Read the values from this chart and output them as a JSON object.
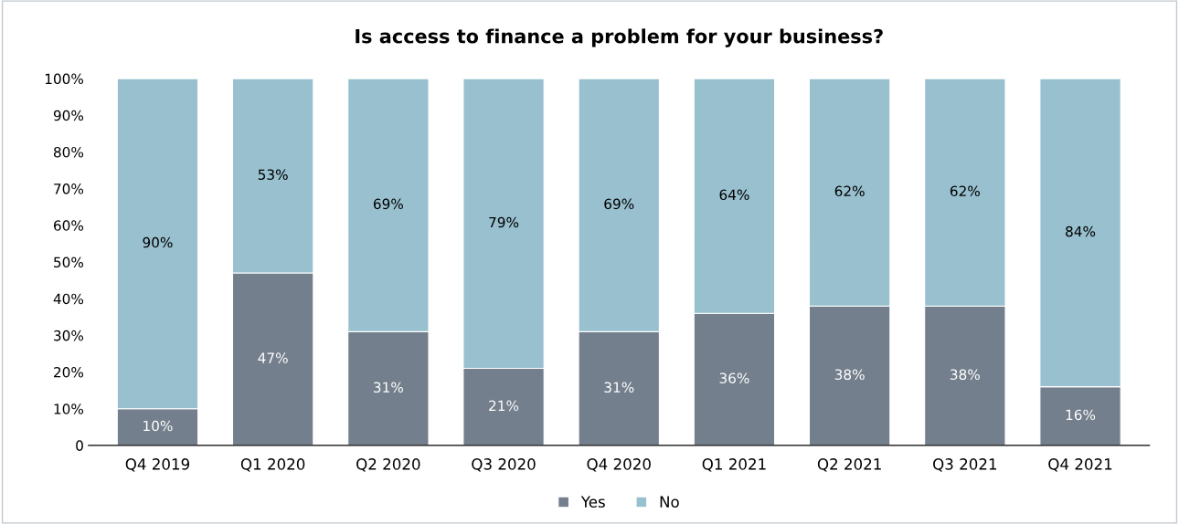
{
  "chart_data": {
    "type": "bar",
    "title": "Is access to finance a problem for your business?",
    "categories": [
      "Q4 2019",
      "Q1 2020",
      "Q2 2020",
      "Q3 2020",
      "Q4 2020",
      "Q1 2021",
      "Q2 2021",
      "Q3 2021",
      "Q4 2021"
    ],
    "series": [
      {
        "name": "Yes",
        "color": "#737f8c",
        "values": [
          10,
          47,
          31,
          21,
          31,
          36,
          38,
          38,
          16
        ],
        "value_labels": [
          "10%",
          "47%",
          "31%",
          "21%",
          "31%",
          "36%",
          "38%",
          "38%",
          "16%"
        ]
      },
      {
        "name": "No",
        "color": "#98c0cf",
        "values": [
          90,
          53,
          69,
          79,
          69,
          64,
          62,
          62,
          84
        ],
        "value_labels": [
          "90%",
          "53%",
          "69%",
          "79%",
          "69%",
          "64%",
          "62%",
          "62%",
          "84%"
        ]
      }
    ],
    "stacked": true,
    "ylim": [
      0,
      100
    ],
    "yticks": [
      0,
      {
        "value": 10,
        "label": "10%"
      },
      {
        "value": 20,
        "label": "20%"
      },
      {
        "value": 30,
        "label": "30%"
      },
      {
        "value": 40,
        "label": "40%"
      },
      {
        "value": 50,
        "label": "50%"
      },
      {
        "value": 60,
        "label": "60%"
      },
      {
        "value": 70,
        "label": "70%"
      },
      {
        "value": 80,
        "label": "80%"
      },
      {
        "value": 90,
        "label": "90%"
      },
      {
        "value": 100,
        "label": "100%"
      }
    ],
    "grid": false,
    "legend": "bottom"
  }
}
